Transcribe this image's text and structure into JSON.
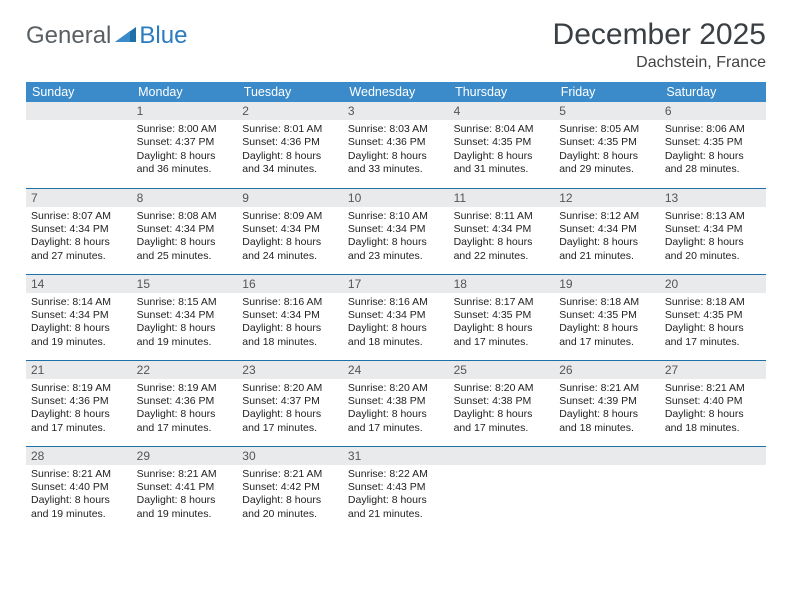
{
  "brand": {
    "part1": "General",
    "part2": "Blue"
  },
  "title": "December 2025",
  "location": "Dachstein, France",
  "weekdays": [
    "Sunday",
    "Monday",
    "Tuesday",
    "Wednesday",
    "Thursday",
    "Friday",
    "Saturday"
  ],
  "colors": {
    "header_bg": "#3b8bca",
    "header_text": "#ffffff",
    "daynum_bg": "#e9eaeb",
    "row_border": "#1f6fa8",
    "title_color": "#3a3f44",
    "brand_gray": "#5a5f63",
    "brand_blue": "#2a7bbf",
    "background": "#ffffff"
  },
  "typography": {
    "title_fontsize": 30,
    "location_fontsize": 16,
    "weekday_fontsize": 12.5,
    "daynum_fontsize": 12,
    "cell_fontsize": 10.5,
    "logo_fontsize": 24
  },
  "layout": {
    "columns": 7,
    "rows": 5,
    "first_weekday_offset": 1
  },
  "days": [
    {
      "n": "1",
      "sr": "8:00 AM",
      "ss": "4:37 PM",
      "dl": "8 hours and 36 minutes."
    },
    {
      "n": "2",
      "sr": "8:01 AM",
      "ss": "4:36 PM",
      "dl": "8 hours and 34 minutes."
    },
    {
      "n": "3",
      "sr": "8:03 AM",
      "ss": "4:36 PM",
      "dl": "8 hours and 33 minutes."
    },
    {
      "n": "4",
      "sr": "8:04 AM",
      "ss": "4:35 PM",
      "dl": "8 hours and 31 minutes."
    },
    {
      "n": "5",
      "sr": "8:05 AM",
      "ss": "4:35 PM",
      "dl": "8 hours and 29 minutes."
    },
    {
      "n": "6",
      "sr": "8:06 AM",
      "ss": "4:35 PM",
      "dl": "8 hours and 28 minutes."
    },
    {
      "n": "7",
      "sr": "8:07 AM",
      "ss": "4:34 PM",
      "dl": "8 hours and 27 minutes."
    },
    {
      "n": "8",
      "sr": "8:08 AM",
      "ss": "4:34 PM",
      "dl": "8 hours and 25 minutes."
    },
    {
      "n": "9",
      "sr": "8:09 AM",
      "ss": "4:34 PM",
      "dl": "8 hours and 24 minutes."
    },
    {
      "n": "10",
      "sr": "8:10 AM",
      "ss": "4:34 PM",
      "dl": "8 hours and 23 minutes."
    },
    {
      "n": "11",
      "sr": "8:11 AM",
      "ss": "4:34 PM",
      "dl": "8 hours and 22 minutes."
    },
    {
      "n": "12",
      "sr": "8:12 AM",
      "ss": "4:34 PM",
      "dl": "8 hours and 21 minutes."
    },
    {
      "n": "13",
      "sr": "8:13 AM",
      "ss": "4:34 PM",
      "dl": "8 hours and 20 minutes."
    },
    {
      "n": "14",
      "sr": "8:14 AM",
      "ss": "4:34 PM",
      "dl": "8 hours and 19 minutes."
    },
    {
      "n": "15",
      "sr": "8:15 AM",
      "ss": "4:34 PM",
      "dl": "8 hours and 19 minutes."
    },
    {
      "n": "16",
      "sr": "8:16 AM",
      "ss": "4:34 PM",
      "dl": "8 hours and 18 minutes."
    },
    {
      "n": "17",
      "sr": "8:16 AM",
      "ss": "4:34 PM",
      "dl": "8 hours and 18 minutes."
    },
    {
      "n": "18",
      "sr": "8:17 AM",
      "ss": "4:35 PM",
      "dl": "8 hours and 17 minutes."
    },
    {
      "n": "19",
      "sr": "8:18 AM",
      "ss": "4:35 PM",
      "dl": "8 hours and 17 minutes."
    },
    {
      "n": "20",
      "sr": "8:18 AM",
      "ss": "4:35 PM",
      "dl": "8 hours and 17 minutes."
    },
    {
      "n": "21",
      "sr": "8:19 AM",
      "ss": "4:36 PM",
      "dl": "8 hours and 17 minutes."
    },
    {
      "n": "22",
      "sr": "8:19 AM",
      "ss": "4:36 PM",
      "dl": "8 hours and 17 minutes."
    },
    {
      "n": "23",
      "sr": "8:20 AM",
      "ss": "4:37 PM",
      "dl": "8 hours and 17 minutes."
    },
    {
      "n": "24",
      "sr": "8:20 AM",
      "ss": "4:38 PM",
      "dl": "8 hours and 17 minutes."
    },
    {
      "n": "25",
      "sr": "8:20 AM",
      "ss": "4:38 PM",
      "dl": "8 hours and 17 minutes."
    },
    {
      "n": "26",
      "sr": "8:21 AM",
      "ss": "4:39 PM",
      "dl": "8 hours and 18 minutes."
    },
    {
      "n": "27",
      "sr": "8:21 AM",
      "ss": "4:40 PM",
      "dl": "8 hours and 18 minutes."
    },
    {
      "n": "28",
      "sr": "8:21 AM",
      "ss": "4:40 PM",
      "dl": "8 hours and 19 minutes."
    },
    {
      "n": "29",
      "sr": "8:21 AM",
      "ss": "4:41 PM",
      "dl": "8 hours and 19 minutes."
    },
    {
      "n": "30",
      "sr": "8:21 AM",
      "ss": "4:42 PM",
      "dl": "8 hours and 20 minutes."
    },
    {
      "n": "31",
      "sr": "8:22 AM",
      "ss": "4:43 PM",
      "dl": "8 hours and 21 minutes."
    }
  ],
  "labels": {
    "sunrise": "Sunrise:",
    "sunset": "Sunset:",
    "daylight": "Daylight:"
  }
}
